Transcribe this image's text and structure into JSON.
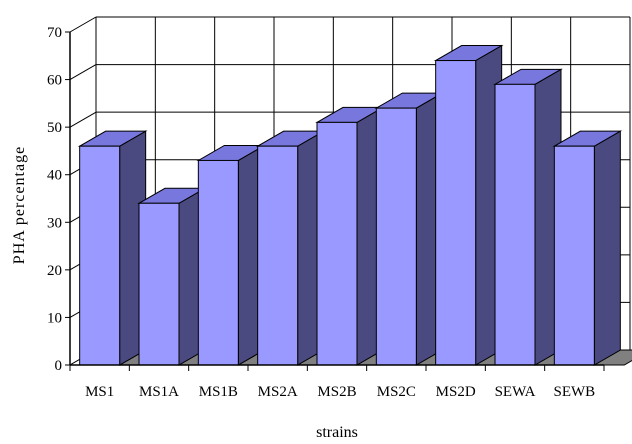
{
  "chart_data": {
    "type": "bar",
    "style": "3d-column",
    "categories": [
      "MS1",
      "MS1A",
      "MS1B",
      "MS2A",
      "MS2B",
      "MS2C",
      "MS2D",
      "SEWA",
      "SEWB"
    ],
    "values": [
      46,
      34,
      43,
      46,
      51,
      54,
      64,
      59,
      46
    ],
    "title": "",
    "xlabel": "strains",
    "ylabel": "PHA percentage",
    "ylim": [
      0,
      70
    ],
    "yticks": [
      0,
      10,
      20,
      30,
      40,
      50,
      60,
      70
    ],
    "grid": true,
    "legend": "none"
  },
  "colors": {
    "bar_front": "#9999ff",
    "bar_side": "#4a4a80",
    "bar_top": "#7777dd",
    "floor": "#808080",
    "grid": "#000000"
  }
}
